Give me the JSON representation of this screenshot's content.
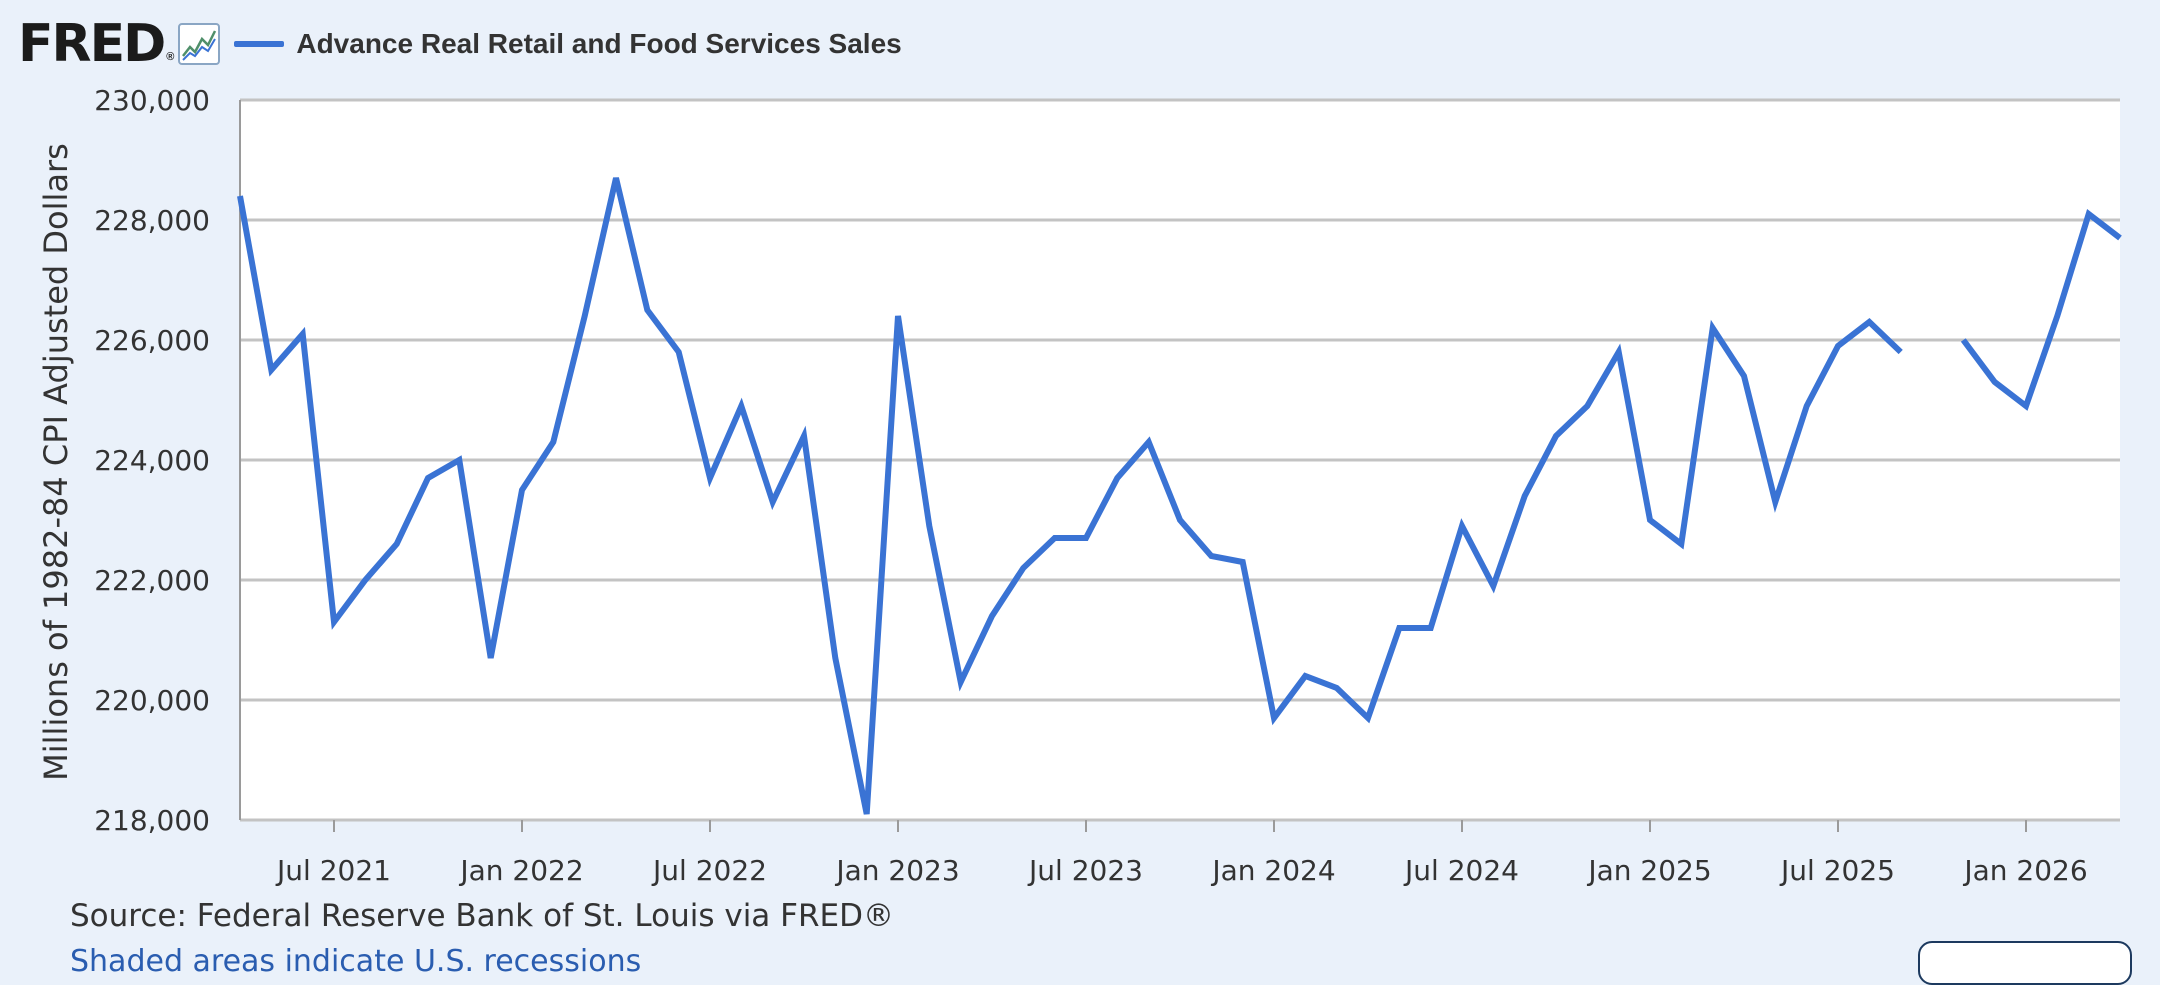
{
  "logo": {
    "text": "FRED",
    "registered": "®",
    "icon": "line-graph-icon"
  },
  "legend": {
    "label": "Advance Real Retail and Food Services Sales",
    "color": "#3a73d4"
  },
  "source": "Source: Federal Reserve Bank of St. Louis via FRED®",
  "share_link": "Shaded areas indicate U.S. recessions",
  "chart_data": {
    "type": "line",
    "ylabel": "Millions of 1982-84 CPI Adjusted Dollars",
    "ylim": [
      218000,
      230000
    ],
    "y_ticks": [
      218000,
      220000,
      222000,
      224000,
      226000,
      228000,
      230000
    ],
    "y_tick_labels": [
      "218,000",
      "220,000",
      "222,000",
      "224,000",
      "226,000",
      "228,000",
      "230,000"
    ],
    "x_tick_labels": [
      "Jul 2021",
      "Jan 2022",
      "Jul 2022",
      "Jan 2023",
      "Jul 2023",
      "Jan 2024",
      "Jul 2024",
      "Jan 2025",
      "Jul 2025",
      "Jan 2026"
    ],
    "x_tick_dates": [
      "2021-07",
      "2022-01",
      "2022-07",
      "2023-01",
      "2023-07",
      "2024-01",
      "2024-07",
      "2025-01",
      "2025-07",
      "2026-01"
    ],
    "grid": true,
    "color": "#3a73d4",
    "series": [
      {
        "x": [
          "2021-04",
          "2021-05",
          "2021-06",
          "2021-07",
          "2021-08",
          "2021-09",
          "2021-10",
          "2021-11",
          "2021-12",
          "2022-01",
          "2022-02",
          "2022-03",
          "2022-04",
          "2022-05",
          "2022-06",
          "2022-07",
          "2022-08",
          "2022-09",
          "2022-10",
          "2022-11",
          "2022-12",
          "2023-01",
          "2023-02",
          "2023-03",
          "2023-04",
          "2023-05",
          "2023-06",
          "2023-07",
          "2023-08",
          "2023-09",
          "2023-10",
          "2023-11",
          "2023-12",
          "2024-01",
          "2024-02",
          "2024-03",
          "2024-04",
          "2024-05",
          "2024-06",
          "2024-07",
          "2024-08",
          "2024-09",
          "2024-10",
          "2024-11",
          "2024-12",
          "2025-01",
          "2025-02",
          "2025-03",
          "2025-04",
          "2025-05",
          "2025-06",
          "2025-07",
          "2025-08",
          "2025-09",
          "2025-10",
          "2025-11",
          "2025-12",
          "2026-01",
          "2026-02",
          "2026-03",
          "2026-04"
        ],
        "values": [
          228400,
          225500,
          226100,
          221300,
          222000,
          222600,
          223700,
          224000,
          220700,
          223500,
          224300,
          226400,
          228700,
          226500,
          225800,
          223700,
          224900,
          223300,
          224400,
          220700,
          218100,
          226400,
          222900,
          220300,
          221400,
          222200,
          222700,
          222700,
          223700,
          224300,
          223000,
          222400,
          222300,
          219700,
          220400,
          220200,
          219700,
          221200,
          221200,
          222900,
          221900,
          223400,
          224400,
          224900,
          225800,
          223000,
          222600,
          226200,
          225400,
          223300,
          224900,
          225900,
          226300,
          225800,
          null,
          226000,
          225300,
          224900,
          226400,
          228100,
          227700
        ]
      }
    ]
  }
}
